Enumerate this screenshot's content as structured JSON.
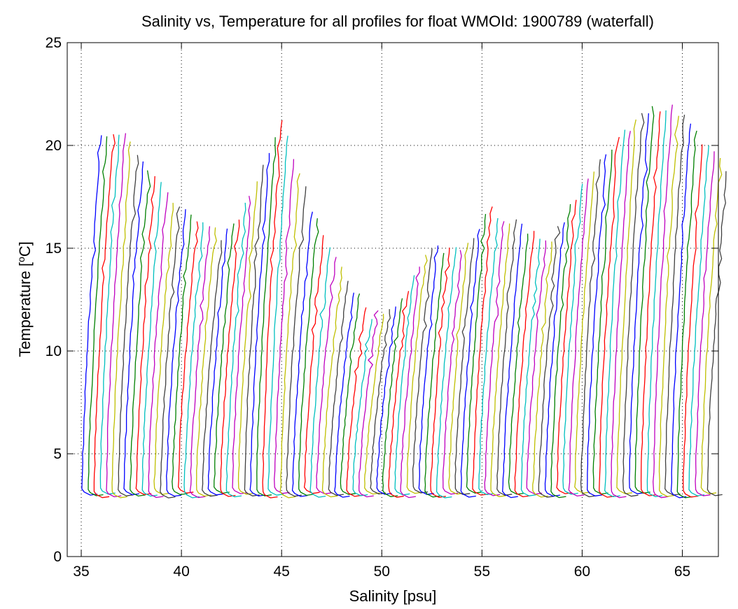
{
  "chart_data": {
    "type": "line",
    "title": "Salinity vs, Temperature for all profiles for float WMOId: 1900789 (waterfall)",
    "xlabel": "Salinity [psu]",
    "ylabel_main": "Temperature [",
    "ylabel_sup": "o",
    "ylabel_tail": "C]",
    "xlim": [
      34.3,
      66.8
    ],
    "ylim": [
      0,
      25
    ],
    "xticks": [
      35,
      40,
      45,
      50,
      55,
      60,
      65
    ],
    "yticks": [
      0,
      5,
      10,
      15,
      20,
      25
    ],
    "xtick_labels": [
      "35",
      "40",
      "45",
      "50",
      "55",
      "60",
      "65"
    ],
    "ytick_labels": [
      "0",
      "5",
      "10",
      "15",
      "20",
      "25"
    ],
    "grid": true,
    "legend": "none",
    "waterfall": {
      "n_profiles": 105,
      "first_base_salinity": 34.9,
      "offset_per_profile": 0.3,
      "bottom_temperature": 2.85,
      "color_cycle": [
        "#0000ff",
        "#008000",
        "#ff0000",
        "#00bfbf",
        "#bf00bf",
        "#bfbf00",
        "#404040"
      ]
    },
    "series": [
      {
        "index": 0,
        "surface_temp": 20.5
      },
      {
        "index": 4,
        "surface_temp": 20.6
      },
      {
        "index": 10,
        "surface_temp": 18.0
      },
      {
        "index": 15,
        "surface_temp": 16.5
      },
      {
        "index": 20,
        "surface_temp": 15.6
      },
      {
        "index": 25,
        "surface_temp": 17.3
      },
      {
        "index": 30,
        "surface_temp": 21.3
      },
      {
        "index": 35,
        "surface_temp": 17.0
      },
      {
        "index": 40,
        "surface_temp": 14.0
      },
      {
        "index": 45,
        "surface_temp": 11.6
      },
      {
        "index": 50,
        "surface_temp": 12.6
      },
      {
        "index": 55,
        "surface_temp": 15.0
      },
      {
        "index": 60,
        "surface_temp": 15.0
      },
      {
        "index": 65,
        "surface_temp": 16.8
      },
      {
        "index": 70,
        "surface_temp": 16.0
      },
      {
        "index": 75,
        "surface_temp": 15.3
      },
      {
        "index": 80,
        "surface_temp": 18.0
      },
      {
        "index": 85,
        "surface_temp": 19.8
      },
      {
        "index": 90,
        "surface_temp": 21.7
      },
      {
        "index": 95,
        "surface_temp": 22.0
      },
      {
        "index": 100,
        "surface_temp": 20.2
      },
      {
        "index": 104,
        "surface_temp": 18.8
      }
    ]
  }
}
